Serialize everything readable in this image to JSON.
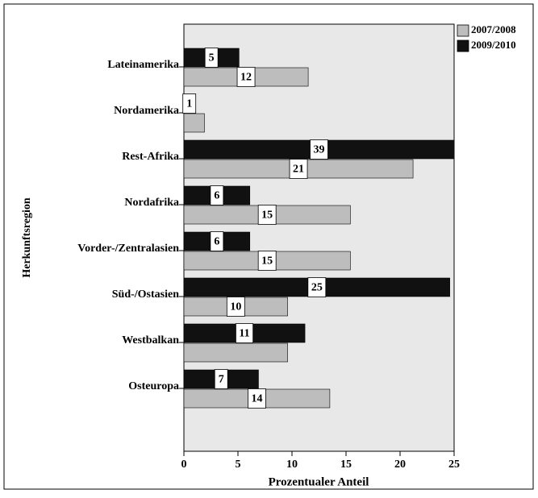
{
  "chart_data": {
    "type": "bar",
    "orientation": "horizontal",
    "categories": [
      "Lateinamerika",
      "Nordamerika",
      "Rest-Afrika",
      "Nordafrika",
      "Vorder-/Zentralasien",
      "Süd-/Ostasien",
      "Westbalkan",
      "Osteuropa"
    ],
    "series": [
      {
        "name": "2009/2010",
        "color": "#111111",
        "values": [
          5.1,
          1.0,
          39,
          6.1,
          6.1,
          24.6,
          11.2,
          6.9
        ],
        "value_labels": [
          "5",
          "1",
          "39",
          "6",
          "6",
          "25",
          "11",
          "7"
        ]
      },
      {
        "name": "2007/2008",
        "color": "#bdbdbd",
        "values": [
          11.5,
          1.9,
          21.2,
          15.4,
          15.4,
          9.6,
          9.6,
          13.5
        ],
        "value_labels": [
          "12",
          null,
          "21",
          "15",
          "15",
          "10",
          null,
          "14"
        ]
      }
    ],
    "legend_order": [
      1,
      0
    ],
    "xlim": [
      0,
      25
    ],
    "xticks": [
      0,
      5,
      10,
      15,
      20,
      25
    ],
    "xlabel": "Prozentualer Anteil",
    "ylabel": "Herkunftsregion",
    "legend": "right top"
  }
}
